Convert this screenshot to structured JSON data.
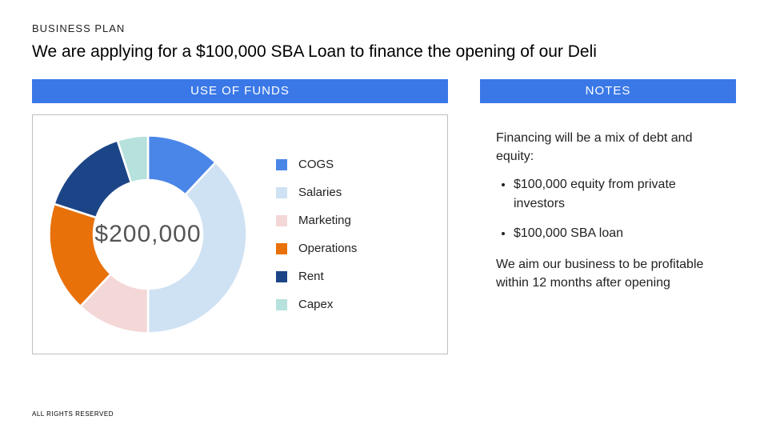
{
  "eyebrow": "BUSINESS PLAN",
  "headline": "We are applying for a $100,000 SBA Loan to finance the opening of our Deli",
  "band_color": "#3b78e7",
  "left": {
    "band_label": "USE OF FUNDS",
    "chart": {
      "type": "donut",
      "center_label": "$200,000",
      "center_fontsize": 30,
      "center_color": "#555555",
      "background_color": "#ffffff",
      "border_color": "#bfbfbf",
      "inner_radius_pct": 55,
      "outer_radius_pct": 100,
      "start_angle_deg": 0,
      "slice_gap_color": "#ffffff",
      "slice_gap_width": 2,
      "series": [
        {
          "label": "COGS",
          "value": 24000,
          "color": "#4a86e8"
        },
        {
          "label": "Salaries",
          "value": 76000,
          "color": "#cfe2f3"
        },
        {
          "label": "Marketing",
          "value": 24000,
          "color": "#f4d7d7"
        },
        {
          "label": "Operations",
          "value": 36000,
          "color": "#e8710a"
        },
        {
          "label": "Rent",
          "value": 30000,
          "color": "#1c4587"
        },
        {
          "label": "Capex",
          "value": 10000,
          "color": "#b6e1dc"
        }
      ],
      "legend_fontsize": 15,
      "legend_color": "#222222"
    }
  },
  "right": {
    "band_label": "NOTES",
    "notes_intro": "Financing will be a mix of debt and equity:",
    "notes_bullets": [
      "$100,000 equity from private investors",
      "$100,000 SBA loan"
    ],
    "notes_outro": "We aim our business to be profitable within 12 months after opening"
  },
  "footer": "ALL RIGHTS RESERVED"
}
